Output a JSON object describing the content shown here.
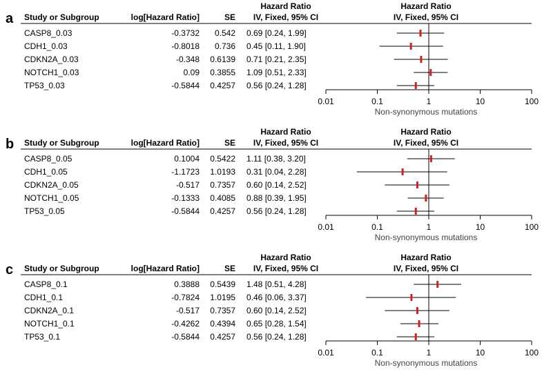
{
  "chart_data": [
    {
      "type": "forest",
      "panel": "a",
      "columns": {
        "study": "Study or Subgroup",
        "logHR": "log[Hazard Ratio]",
        "se": "SE",
        "hr_title": "Hazard Ratio",
        "hr_sub": "IV, Fixed, 95% CI",
        "plot_title": "Hazard Ratio",
        "plot_sub": "IV, Fixed, 95% CI"
      },
      "rows": [
        {
          "study": "CASP8_0.03",
          "logHR": "-0.3732",
          "se": "0.542",
          "ci_text": "0.69 [0.24, 1.99]",
          "hr": 0.69,
          "lo": 0.24,
          "hi": 1.99
        },
        {
          "study": "CDH1_0.03",
          "logHR": "-0.8018",
          "se": "0.736",
          "ci_text": "0.45 [0.11, 1.90]",
          "hr": 0.45,
          "lo": 0.11,
          "hi": 1.9
        },
        {
          "study": "CDKN2A_0.03",
          "logHR": "-0.348",
          "se": "0.6139",
          "ci_text": "0.71 [0.21, 2.35]",
          "hr": 0.71,
          "lo": 0.21,
          "hi": 2.35
        },
        {
          "study": "NOTCH1_0.03",
          "logHR": "0.09",
          "se": "0.3855",
          "ci_text": "1.09 [0.51, 2.33]",
          "hr": 1.09,
          "lo": 0.51,
          "hi": 2.33
        },
        {
          "study": "TP53_0.03",
          "logHR": "-0.5844",
          "se": "0.4257",
          "ci_text": "0.56 [0.24, 1.28]",
          "hr": 0.56,
          "lo": 0.24,
          "hi": 1.28
        }
      ],
      "x_scale": "log",
      "xlim": [
        0.01,
        100
      ],
      "x_ticks": [
        "0.01",
        "0.1",
        "1",
        "10",
        "100"
      ],
      "x_tick_values": [
        0.01,
        0.1,
        1,
        10,
        100
      ],
      "xlabel": "Non-synonymous mutations",
      "reference_line": 1
    },
    {
      "type": "forest",
      "panel": "b",
      "columns": {
        "study": "Study or Subgroup",
        "logHR": "log[Hazard Ratio]",
        "se": "SE",
        "hr_title": "Hazard Ratio",
        "hr_sub": "IV, Fixed, 95% CI",
        "plot_title": "Hazard Ratio",
        "plot_sub": "IV, Fixed, 95% CI"
      },
      "rows": [
        {
          "study": "CASP8_0.05",
          "logHR": "0.1004",
          "se": "0.5422",
          "ci_text": "1.11 [0.38, 3.20]",
          "hr": 1.11,
          "lo": 0.38,
          "hi": 3.2
        },
        {
          "study": "CDH1_0.05",
          "logHR": "-1.1723",
          "se": "1.0193",
          "ci_text": "0.31 [0.04, 2.28]",
          "hr": 0.31,
          "lo": 0.04,
          "hi": 2.28
        },
        {
          "study": "CDKN2A_0.05",
          "logHR": "-0.517",
          "se": "0.7357",
          "ci_text": "0.60 [0.14, 2.52]",
          "hr": 0.6,
          "lo": 0.14,
          "hi": 2.52
        },
        {
          "study": "NOTCH1_0.05",
          "logHR": "-0.1333",
          "se": "0.4085",
          "ci_text": "0.88 [0.39, 1.95]",
          "hr": 0.88,
          "lo": 0.39,
          "hi": 1.95
        },
        {
          "study": "TP53_0.05",
          "logHR": "-0.5844",
          "se": "0.4257",
          "ci_text": "0.56 [0.24, 1.28]",
          "hr": 0.56,
          "lo": 0.24,
          "hi": 1.28
        }
      ],
      "x_scale": "log",
      "xlim": [
        0.01,
        100
      ],
      "x_ticks": [
        "0.01",
        "0.1",
        "1",
        "10",
        "100"
      ],
      "x_tick_values": [
        0.01,
        0.1,
        1,
        10,
        100
      ],
      "xlabel": "Non-synonymous mutations",
      "reference_line": 1
    },
    {
      "type": "forest",
      "panel": "c",
      "columns": {
        "study": "Study or Subgroup",
        "logHR": "log[Hazard Ratio]",
        "se": "SE",
        "hr_title": "Hazard Ratio",
        "hr_sub": "IV, Fixed, 95% CI",
        "plot_title": "Hazard Ratio",
        "plot_sub": "IV, Fixed, 95% CI"
      },
      "rows": [
        {
          "study": "CASP8_0.1",
          "logHR": "0.3888",
          "se": "0.5439",
          "ci_text": "1.48 [0.51, 4.28]",
          "hr": 1.48,
          "lo": 0.51,
          "hi": 4.28
        },
        {
          "study": "CDH1_0.1",
          "logHR": "-0.7824",
          "se": "1.0195",
          "ci_text": "0.46 [0.06, 3.37]",
          "hr": 0.46,
          "lo": 0.06,
          "hi": 3.37
        },
        {
          "study": "CDKN2A_0.1",
          "logHR": "-0.517",
          "se": "0.7357",
          "ci_text": "0.60 [0.14, 2.52]",
          "hr": 0.6,
          "lo": 0.14,
          "hi": 2.52
        },
        {
          "study": "NOTCH1_0.1",
          "logHR": "-0.4262",
          "se": "0.4394",
          "ci_text": "0.65 [0.28, 1.54]",
          "hr": 0.65,
          "lo": 0.28,
          "hi": 1.54
        },
        {
          "study": "TP53_0.1",
          "logHR": "-0.5844",
          "se": "0.4257",
          "ci_text": "0.56 [0.24, 1.28]",
          "hr": 0.56,
          "lo": 0.24,
          "hi": 1.28
        }
      ],
      "x_scale": "log",
      "xlim": [
        0.01,
        100
      ],
      "x_ticks": [
        "0.01",
        "0.1",
        "1",
        "10",
        "100"
      ],
      "x_tick_values": [
        0.01,
        0.1,
        1,
        10,
        100
      ],
      "xlabel": "Non-synonymous mutations",
      "reference_line": 1
    }
  ],
  "colors": {
    "marker": "#cc2222",
    "line": "#000000",
    "axis_label": "#444444"
  }
}
